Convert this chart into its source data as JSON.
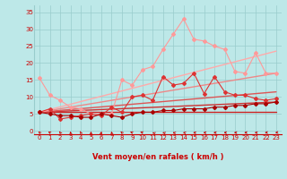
{
  "xlabel": "Vent moyen/en rafales ( km/h )",
  "xlim": [
    -0.5,
    23.5
  ],
  "ylim": [
    -1,
    37
  ],
  "yticks": [
    0,
    5,
    10,
    15,
    20,
    25,
    30,
    35
  ],
  "xticks": [
    0,
    1,
    2,
    3,
    4,
    5,
    6,
    7,
    8,
    9,
    10,
    11,
    12,
    13,
    14,
    15,
    16,
    17,
    18,
    19,
    20,
    21,
    22,
    23
  ],
  "bg_color": "#bde8e8",
  "grid_color": "#99cccc",
  "line_pink_x": [
    0,
    1,
    2,
    3,
    4,
    5,
    6,
    7,
    8,
    9,
    10,
    11,
    12,
    13,
    14,
    15,
    16,
    17,
    18,
    19,
    20,
    21,
    22,
    23
  ],
  "line_pink_y": [
    15.5,
    10.5,
    9,
    7,
    6.5,
    5,
    5,
    5,
    15,
    13.5,
    18,
    19,
    24,
    28.5,
    33,
    27,
    26.5,
    25,
    24,
    17.5,
    17,
    23,
    17,
    17
  ],
  "line_med_x": [
    0,
    1,
    2,
    3,
    4,
    5,
    6,
    7,
    8,
    9,
    10,
    11,
    12,
    13,
    14,
    15,
    16,
    17,
    18,
    19,
    20,
    21,
    22,
    23
  ],
  "line_med_y": [
    5.5,
    6.5,
    3.5,
    4,
    4.5,
    5,
    4.5,
    7,
    5.5,
    10,
    10.5,
    9,
    16,
    13.5,
    14,
    17,
    11,
    16,
    11.5,
    10.5,
    10.5,
    9.5,
    9,
    9.5
  ],
  "line_dark_x": [
    0,
    1,
    2,
    3,
    4,
    5,
    6,
    7,
    8,
    9,
    10,
    11,
    12,
    13,
    14,
    15,
    16,
    17,
    18,
    19,
    20,
    21,
    22,
    23
  ],
  "line_dark_y": [
    5.5,
    5,
    4.5,
    4.5,
    4,
    4,
    5,
    4.5,
    4,
    5,
    5.5,
    5.5,
    6,
    6,
    6.5,
    6.5,
    6.5,
    7,
    7,
    7.5,
    7.5,
    8,
    8,
    8.5
  ],
  "trend_lines": [
    {
      "x": [
        0,
        23
      ],
      "y": [
        5.5,
        5.5
      ],
      "color": "#cc2222",
      "lw": 1.0
    },
    {
      "x": [
        0,
        23
      ],
      "y": [
        5.5,
        8.5
      ],
      "color": "#cc3333",
      "lw": 1.0
    },
    {
      "x": [
        0,
        23
      ],
      "y": [
        5.5,
        11.5
      ],
      "color": "#dd5555",
      "lw": 1.0
    },
    {
      "x": [
        0,
        23
      ],
      "y": [
        5.5,
        17.0
      ],
      "color": "#ee8888",
      "lw": 1.0
    },
    {
      "x": [
        0,
        23
      ],
      "y": [
        5.5,
        23.5
      ],
      "color": "#ffaaaa",
      "lw": 1.0
    }
  ],
  "color_pink": "#ff9999",
  "color_med": "#dd3333",
  "color_dark": "#aa0000",
  "wind_arrows_x": [
    0,
    1,
    2,
    3,
    4,
    5,
    6,
    7,
    8,
    9,
    10,
    11,
    12,
    13,
    14,
    15,
    16,
    17,
    18,
    19,
    20,
    21,
    22,
    23
  ],
  "wind_angles": [
    200,
    210,
    195,
    185,
    190,
    180,
    175,
    185,
    200,
    215,
    220,
    225,
    230,
    235,
    240,
    245,
    250,
    255,
    255,
    260,
    265,
    255,
    275,
    285
  ]
}
